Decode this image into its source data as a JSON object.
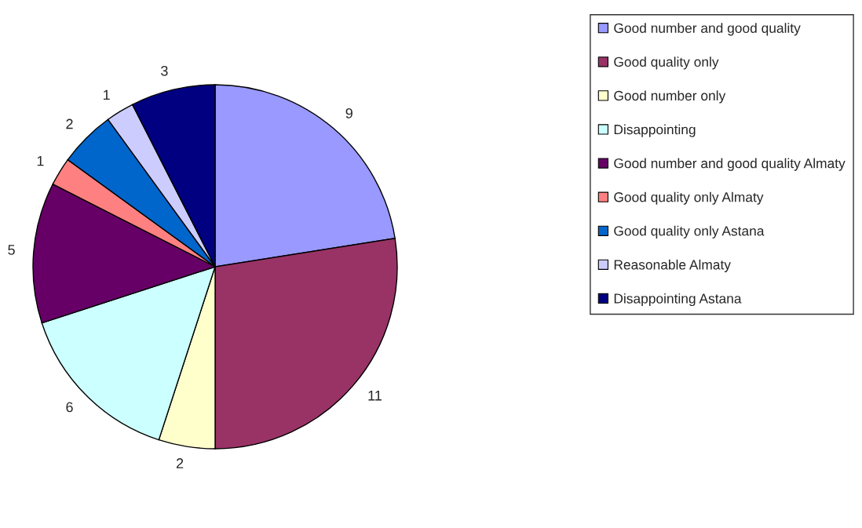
{
  "chart_data": {
    "type": "pie",
    "categories": [
      "Good number and good quality",
      "Good quality only",
      "Good number only",
      "Disappointing",
      "Good number and good quality Almaty",
      "Good quality only Almaty",
      "Good quality only Astana",
      "Reasonable Almaty",
      "Disappointing Astana"
    ],
    "values": [
      9,
      11,
      2,
      6,
      5,
      1,
      2,
      1,
      3
    ],
    "colors": [
      "#9999ff",
      "#993366",
      "#ffffcc",
      "#ccffff",
      "#660066",
      "#ff8080",
      "#0066cc",
      "#ccccff",
      "#000080"
    ],
    "data_labels": true,
    "legend": "right"
  }
}
